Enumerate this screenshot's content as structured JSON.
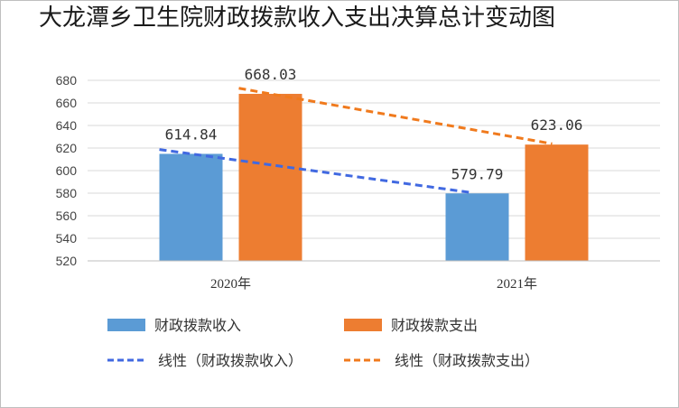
{
  "chart_data": {
    "type": "bar",
    "title": "大龙潭乡卫生院财政拨款收入支出决算总计变动图",
    "categories": [
      "2020年",
      "2021年"
    ],
    "series": [
      {
        "name": "财政拨款收入",
        "values": [
          614.84,
          579.79
        ],
        "color": "#5b9bd5"
      },
      {
        "name": "财政拨款支出",
        "values": [
          668.03,
          623.06
        ],
        "color": "#ed7d31"
      }
    ],
    "data_labels": [
      [
        "614.84",
        "579.79"
      ],
      [
        "668.03",
        "623.06"
      ]
    ],
    "trendlines": [
      {
        "name": "线性（财政拨款收入）",
        "of_series": 0,
        "color": "#4169e1"
      },
      {
        "name": "线性（财政拨款支出）",
        "of_series": 1,
        "color": "#f07a1d"
      }
    ],
    "ylim": [
      520,
      680
    ],
    "yticks": [
      520,
      540,
      560,
      580,
      600,
      620,
      640,
      660,
      680
    ],
    "grid": true,
    "legend_position": "bottom"
  }
}
